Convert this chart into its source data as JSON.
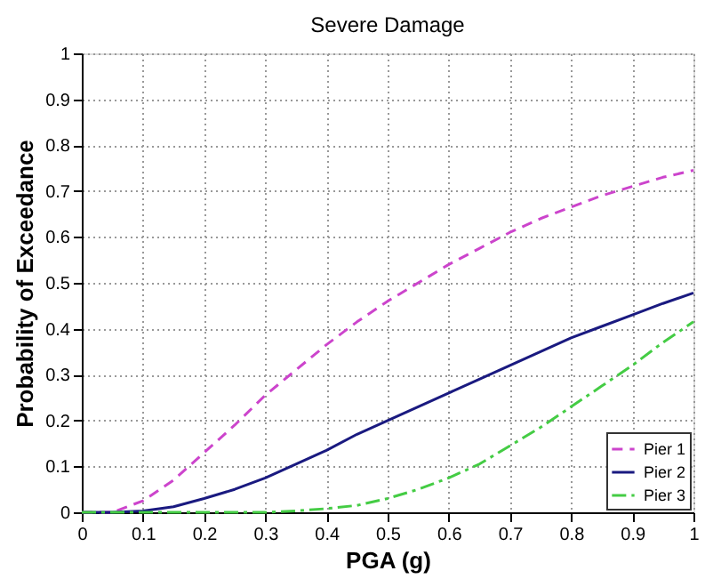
{
  "chart_data": {
    "type": "line",
    "title": "Severe Damage",
    "xlabel": "PGA (g)",
    "ylabel": "Probability of Exceedance",
    "x": [
      0,
      0.05,
      0.1,
      0.15,
      0.2,
      0.25,
      0.3,
      0.35,
      0.4,
      0.45,
      0.5,
      0.55,
      0.6,
      0.65,
      0.7,
      0.75,
      0.8,
      0.85,
      0.9,
      0.95,
      1
    ],
    "series": [
      {
        "name": "Pier 1",
        "color": "#cc44cc",
        "line_style": "dashed",
        "values": [
          0,
          0,
          0.025,
          0.07,
          0.13,
          0.19,
          0.255,
          0.31,
          0.365,
          0.415,
          0.46,
          0.5,
          0.54,
          0.575,
          0.61,
          0.64,
          0.665,
          0.69,
          0.71,
          0.73,
          0.745
        ]
      },
      {
        "name": "Pier 2",
        "color": "#1a1a80",
        "line_style": "solid",
        "values": [
          0,
          0,
          0.003,
          0.012,
          0.03,
          0.05,
          0.075,
          0.105,
          0.135,
          0.17,
          0.2,
          0.23,
          0.26,
          0.29,
          0.32,
          0.35,
          0.38,
          0.405,
          0.43,
          0.455,
          0.478
        ]
      },
      {
        "name": "Pier 3",
        "color": "#44cc44",
        "line_style": "dashdot",
        "values": [
          0,
          0,
          0,
          0,
          0,
          0,
          0,
          0.003,
          0.008,
          0.015,
          0.03,
          0.05,
          0.075,
          0.105,
          0.145,
          0.185,
          0.23,
          0.275,
          0.32,
          0.37,
          0.415
        ]
      }
    ],
    "xlim": [
      0,
      1
    ],
    "xticks": [
      0,
      0.1,
      0.2,
      0.3,
      0.4,
      0.5,
      0.6,
      0.7,
      0.8,
      0.9,
      1
    ],
    "ylim": [
      0,
      1
    ],
    "yticks": [
      0,
      0.1,
      0.2,
      0.3,
      0.4,
      0.5,
      0.6,
      0.7,
      0.8,
      0.9,
      1
    ],
    "grid": true,
    "legend": "bottom right",
    "marker": "none"
  }
}
